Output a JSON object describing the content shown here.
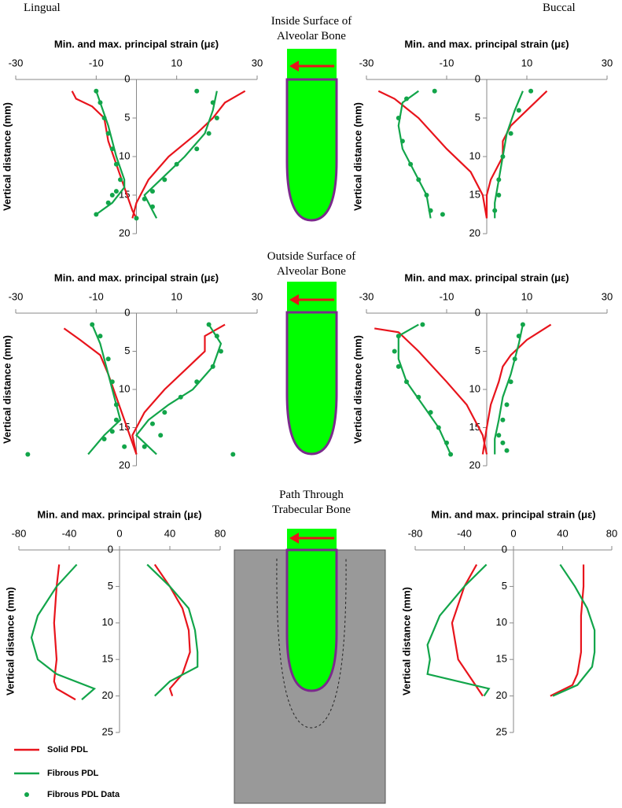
{
  "labels": {
    "lingual": "Lingual",
    "buccal": "Buccal"
  },
  "panel_titles": [
    "Inside Surface of Alveolar Bone",
    "Outside Surface of Alveolar Bone",
    "Path Through Trabecular Bone"
  ],
  "chart_data": [
    {
      "type": "line",
      "x_label": "Min. and max. principal strain (με)",
      "y_label": "Vertical distance (mm)",
      "xlim": [
        -30,
        30
      ],
      "xticks": [
        -30,
        -10,
        10,
        30
      ],
      "ylim": [
        0,
        20
      ],
      "yticks": [
        0,
        5,
        10,
        15,
        20
      ],
      "y_inverted": true,
      "series": [
        {
          "name": "Solid PDL",
          "color": "#e8141c",
          "style": "line",
          "curves": [
            {
              "strain": [
                -16,
                -15,
                -11,
                -8,
                -7,
                -5,
                -3,
                -1,
                0
              ],
              "depth": [
                1.5,
                2.5,
                3.5,
                5,
                8,
                11,
                14,
                17,
                18
              ]
            },
            {
              "strain": [
                27,
                22,
                19,
                15,
                8,
                3,
                0,
                -1
              ],
              "depth": [
                1.5,
                3,
                5,
                7,
                10,
                13,
                16,
                18
              ]
            }
          ]
        },
        {
          "name": "Fibrous PDL",
          "color": "#12a54a",
          "style": "line",
          "curves": [
            {
              "strain": [
                -10,
                -9,
                -7,
                -5,
                -3,
                -3,
                -6,
                -10
              ],
              "depth": [
                1.5,
                3,
                6,
                10,
                13,
                14,
                16,
                17.5
              ]
            },
            {
              "strain": [
                20,
                19,
                17,
                12,
                6,
                2,
                4,
                5
              ],
              "depth": [
                1.5,
                4,
                7,
                10,
                13,
                15,
                17,
                18
              ]
            }
          ]
        },
        {
          "name": "Fibrous PDL Data",
          "color": "#12a54a",
          "style": "points",
          "curves": [
            {
              "strain": [
                -10,
                -9,
                -8,
                -7,
                -6,
                -5,
                -4,
                -5,
                -6,
                -7,
                -10,
                15,
                19,
                20,
                18,
                15,
                10,
                7,
                4,
                2,
                4,
                0
              ],
              "depth": [
                1.5,
                3,
                5,
                7,
                9,
                11,
                13,
                14.5,
                15,
                16,
                17.5,
                1.5,
                3,
                5,
                7,
                9,
                11,
                13,
                14.5,
                15.5,
                16.5,
                18
              ]
            }
          ]
        }
      ]
    },
    {
      "type": "line",
      "x_label": "Min. and max. principal strain (με)",
      "y_label": "Vertical distance (mm)",
      "xlim": [
        -30,
        30
      ],
      "xticks": [
        -30,
        -10,
        10,
        30
      ],
      "ylim": [
        0,
        20
      ],
      "yticks": [
        0,
        5,
        10,
        15,
        20
      ],
      "y_inverted": true,
      "series": [
        {
          "name": "Solid PDL",
          "color": "#e8141c",
          "style": "line",
          "curves": [
            {
              "strain": [
                -27,
                -23,
                -17,
                -10,
                -4,
                -1,
                0
              ],
              "depth": [
                1.5,
                2.5,
                5,
                9,
                12,
                15,
                18
              ]
            },
            {
              "strain": [
                15,
                10,
                6,
                4,
                4,
                1,
                0,
                0
              ],
              "depth": [
                1.5,
                4,
                6,
                8,
                10,
                13,
                15,
                18
              ]
            }
          ]
        },
        {
          "name": "Fibrous PDL",
          "color": "#12a54a",
          "style": "line",
          "curves": [
            {
              "strain": [
                -17,
                -21,
                -22,
                -21,
                -18,
                -15,
                -14
              ],
              "depth": [
                1.5,
                3,
                6,
                9,
                12,
                15,
                18
              ]
            },
            {
              "strain": [
                9,
                7,
                5,
                4,
                3,
                2,
                2
              ],
              "depth": [
                1.5,
                4,
                7,
                10,
                13,
                16,
                18
              ]
            }
          ]
        },
        {
          "name": "Fibrous PDL Data",
          "color": "#12a54a",
          "style": "points",
          "curves": [
            {
              "strain": [
                -13,
                -20,
                -22,
                -21,
                -19,
                -17,
                -15,
                -14,
                -11,
                11,
                8,
                6,
                4,
                3,
                3,
                2
              ],
              "depth": [
                1.5,
                2.5,
                5,
                8,
                11,
                13,
                15,
                17,
                17.5,
                1.5,
                4,
                7,
                10,
                13,
                15,
                17
              ]
            }
          ]
        }
      ]
    },
    {
      "type": "line",
      "x_label": "Min. and max. principal strain (με)",
      "y_label": "Vertical distance (mm)",
      "xlim": [
        -30,
        30
      ],
      "xticks": [
        -30,
        -10,
        10,
        30
      ],
      "ylim": [
        0,
        20
      ],
      "yticks": [
        0,
        5,
        10,
        15,
        20
      ],
      "y_inverted": true,
      "series": [
        {
          "name": "Solid PDL",
          "color": "#e8141c",
          "style": "line",
          "curves": [
            {
              "strain": [
                -18,
                -14,
                -9,
                -7,
                -5,
                -3,
                -1,
                0
              ],
              "depth": [
                2,
                3.5,
                5.5,
                8,
                11,
                14,
                17,
                18.5
              ]
            },
            {
              "strain": [
                22,
                17,
                17,
                13,
                7,
                2,
                -1,
                0
              ],
              "depth": [
                1.5,
                3,
                5,
                7,
                10,
                13,
                16,
                18.5
              ]
            }
          ]
        },
        {
          "name": "Fibrous PDL",
          "color": "#12a54a",
          "style": "line",
          "curves": [
            {
              "strain": [
                -11,
                -9,
                -7,
                -5,
                -4,
                -8,
                -12
              ],
              "depth": [
                1.5,
                4,
                8,
                12,
                14,
                16,
                18.5
              ]
            },
            {
              "strain": [
                18,
                21,
                19,
                14,
                8,
                3,
                0,
                5
              ],
              "depth": [
                1.5,
                4,
                7,
                10,
                12,
                14,
                16,
                18.5
              ]
            }
          ]
        },
        {
          "name": "Fibrous PDL Data",
          "color": "#12a54a",
          "style": "points",
          "curves": [
            {
              "strain": [
                -11,
                -9,
                -7,
                -6,
                -5,
                -5,
                -6,
                -8,
                -27,
                -3,
                18,
                20,
                21,
                19,
                15,
                11,
                7,
                4,
                6,
                24,
                2
              ],
              "depth": [
                1.5,
                3,
                6,
                9,
                12,
                14,
                15.5,
                16.5,
                18.5,
                17.5,
                1.5,
                3,
                5,
                7,
                9,
                11,
                13,
                14.5,
                16,
                18.5,
                17.5
              ]
            }
          ]
        }
      ]
    },
    {
      "type": "line",
      "x_label": "Min. and max. principal strain (με)",
      "y_label": "Vertical distance (mm)",
      "xlim": [
        -30,
        30
      ],
      "xticks": [
        -30,
        -10,
        10,
        30
      ],
      "ylim": [
        0,
        20
      ],
      "yticks": [
        0,
        5,
        10,
        15,
        20
      ],
      "y_inverted": true,
      "series": [
        {
          "name": "Solid PDL",
          "color": "#e8141c",
          "style": "line",
          "curves": [
            {
              "strain": [
                -28,
                -22,
                -17,
                -10,
                -5,
                -1,
                0
              ],
              "depth": [
                2,
                2.5,
                5,
                9,
                12,
                16,
                18.5
              ]
            },
            {
              "strain": [
                16,
                10,
                6,
                4,
                3,
                1,
                0,
                -1
              ],
              "depth": [
                1.5,
                3.5,
                5.5,
                7,
                9,
                12,
                15,
                18.5
              ]
            }
          ]
        },
        {
          "name": "Fibrous PDL",
          "color": "#12a54a",
          "style": "line",
          "curves": [
            {
              "strain": [
                -17,
                -22,
                -22,
                -20,
                -16,
                -12,
                -9
              ],
              "depth": [
                1.5,
                3,
                6,
                9,
                12,
                15,
                18.5
              ]
            },
            {
              "strain": [
                9,
                8,
                6,
                4,
                3,
                2,
                2
              ],
              "depth": [
                1.5,
                4,
                8,
                11,
                14,
                16.5,
                18.5
              ]
            }
          ]
        },
        {
          "name": "Fibrous PDL Data",
          "color": "#12a54a",
          "style": "points",
          "curves": [
            {
              "strain": [
                -16,
                -22,
                -23,
                -22,
                -20,
                -17,
                -14,
                -12,
                -10,
                -9,
                9,
                8,
                7,
                6,
                5,
                4,
                3,
                4,
                5
              ],
              "depth": [
                1.5,
                3,
                5,
                7,
                9,
                11,
                13,
                15,
                17,
                18.5,
                1.5,
                3,
                6,
                9,
                12,
                14,
                16,
                17,
                18
              ]
            }
          ]
        }
      ]
    },
    {
      "type": "line",
      "x_label": "Min. and max. principal strain (με)",
      "y_label": "Vertical distance (mm)",
      "xlim": [
        -80,
        80
      ],
      "xticks": [
        -80,
        -40,
        0,
        40,
        80
      ],
      "ylim": [
        0,
        25
      ],
      "yticks": [
        0,
        5,
        10,
        15,
        20,
        25
      ],
      "y_inverted": true,
      "series": [
        {
          "name": "Solid PDL",
          "color": "#e8141c",
          "style": "line",
          "curves": [
            {
              "strain": [
                -48,
                -50,
                -52,
                -50,
                -52,
                -50,
                -35
              ],
              "depth": [
                2,
                5,
                10,
                15,
                18,
                19,
                20.5
              ]
            },
            {
              "strain": [
                28,
                40,
                50,
                55,
                56,
                50,
                40,
                42
              ],
              "depth": [
                2,
                5,
                8,
                11,
                14,
                17,
                19,
                20
              ]
            }
          ]
        },
        {
          "name": "Fibrous PDL",
          "color": "#12a54a",
          "style": "line",
          "curves": [
            {
              "strain": [
                -34,
                -50,
                -65,
                -70,
                -65,
                -50,
                -20,
                -30
              ],
              "depth": [
                2,
                5,
                9,
                12,
                15,
                17,
                19,
                20.5
              ]
            },
            {
              "strain": [
                22,
                40,
                55,
                60,
                62,
                62,
                40,
                28
              ],
              "depth": [
                2,
                5,
                8,
                11,
                14,
                16,
                18,
                20
              ]
            }
          ]
        }
      ]
    },
    {
      "type": "line",
      "x_label": "Min. and max. principal strain (με)",
      "y_label": "Vertical distance (mm)",
      "xlim": [
        -80,
        80
      ],
      "xticks": [
        -80,
        -40,
        0,
        40,
        80
      ],
      "ylim": [
        0,
        25
      ],
      "yticks": [
        0,
        5,
        10,
        15,
        20,
        25
      ],
      "y_inverted": true,
      "series": [
        {
          "name": "Solid PDL",
          "color": "#e8141c",
          "style": "line",
          "curves": [
            {
              "strain": [
                -30,
                -40,
                -50,
                -45,
                -33,
                -25
              ],
              "depth": [
                2,
                5,
                10,
                15,
                18,
                20
              ]
            },
            {
              "strain": [
                57,
                57,
                55,
                55,
                52,
                48,
                30
              ],
              "depth": [
                2,
                5,
                9,
                14,
                17,
                18.5,
                20
              ]
            }
          ]
        },
        {
          "name": "Fibrous PDL",
          "color": "#12a54a",
          "style": "line",
          "curves": [
            {
              "strain": [
                -22,
                -40,
                -60,
                -70,
                -68,
                -70,
                -20,
                -24
              ],
              "depth": [
                2,
                5,
                9,
                13,
                15,
                17,
                19,
                20
              ]
            },
            {
              "strain": [
                38,
                50,
                60,
                66,
                66,
                64,
                52,
                32
              ],
              "depth": [
                2,
                5,
                8,
                11,
                14,
                16,
                18.5,
                20
              ]
            }
          ]
        }
      ]
    }
  ]
}
